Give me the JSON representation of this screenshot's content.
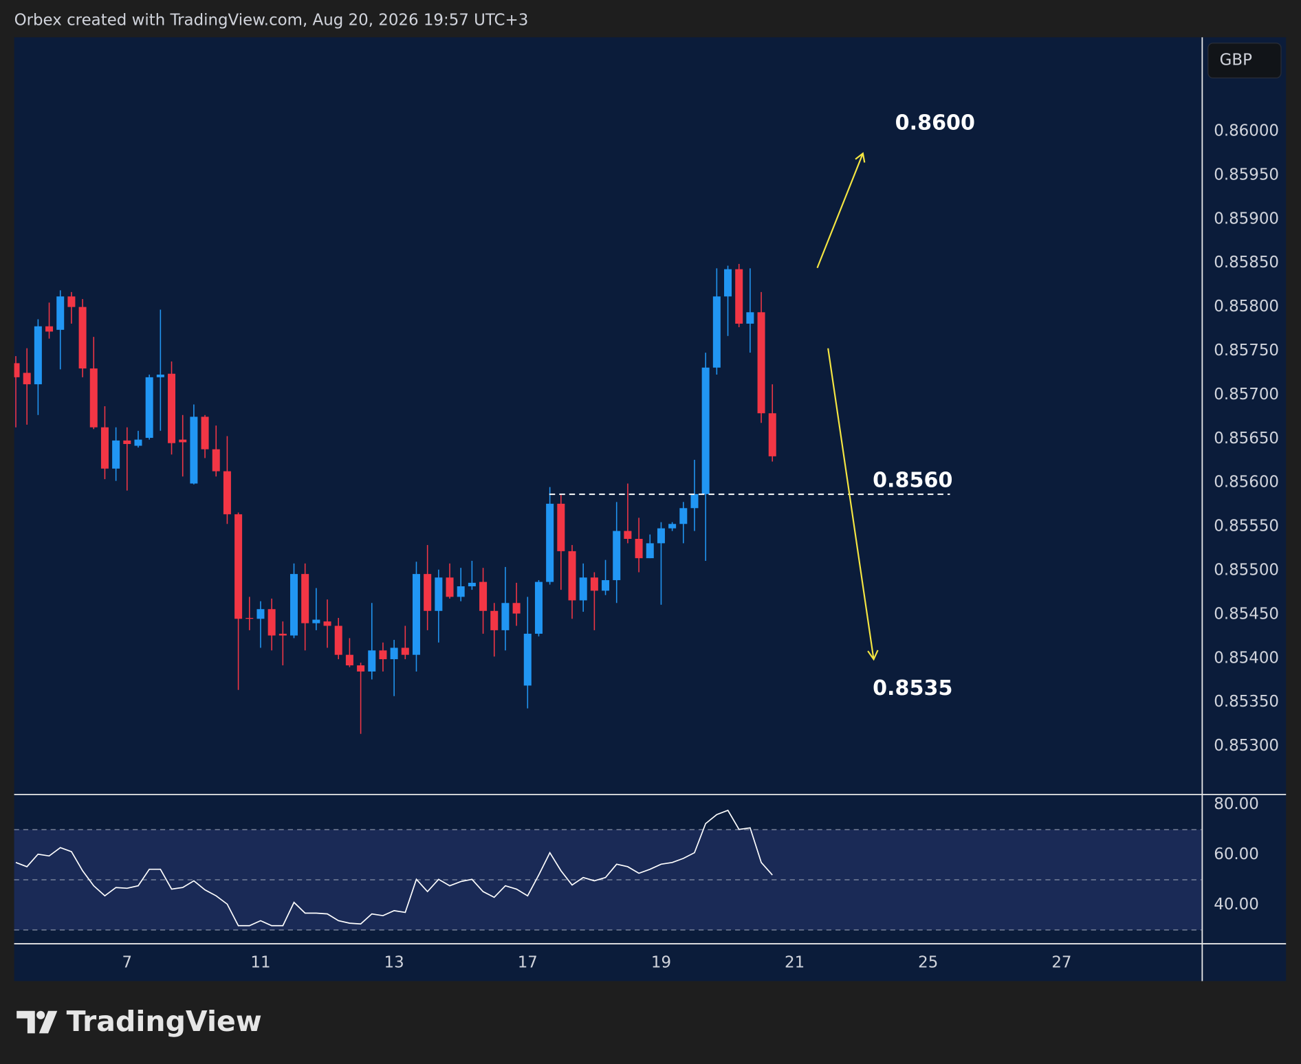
{
  "header": "Orbex created with TradingView.com, Aug 20, 2026 19:57 UTC+3",
  "brand": "TradingView",
  "chart_data": [
    {
      "type": "candlestick",
      "currency": "GBP",
      "up_color": "#2196f3",
      "down_color": "#f23645",
      "open": [
        0.85736,
        0.85725,
        0.85712,
        0.85778,
        0.85774,
        0.85812,
        0.858,
        0.8573,
        0.85663,
        0.85616,
        0.85648,
        0.85642,
        0.85651,
        0.8572,
        0.85724,
        0.85649,
        0.85599,
        0.85675,
        0.85638,
        0.85613,
        0.85564,
        0.85446,
        0.85445,
        0.85456,
        0.85428,
        0.85426,
        0.85496,
        0.8544,
        0.85442,
        0.85437,
        0.85404,
        0.85392,
        0.85385,
        0.85409,
        0.85399,
        0.85412,
        0.85404,
        0.85496,
        0.85454,
        0.85492,
        0.8547,
        0.85482,
        0.85487,
        0.85454,
        0.85432,
        0.85463,
        0.85369,
        0.85428,
        0.85487,
        0.85576,
        0.85522,
        0.85466,
        0.85492,
        0.85477,
        0.85489,
        0.85545,
        0.85536,
        0.85514,
        0.85531,
        0.85548,
        0.85553,
        0.85571,
        0.85587,
        0.85731,
        0.85812,
        0.85843,
        0.85781,
        0.85794,
        0.85679
      ],
      "high": [
        0.85744,
        0.85753,
        0.85786,
        0.85805,
        0.85819,
        0.85817,
        0.85809,
        0.85766,
        0.85687,
        0.85663,
        0.85663,
        0.85659,
        0.85723,
        0.85797,
        0.85738,
        0.85677,
        0.85689,
        0.85677,
        0.85665,
        0.85653,
        0.85566,
        0.8547,
        0.85465,
        0.85468,
        0.85442,
        0.85508,
        0.85508,
        0.8548,
        0.85467,
        0.85446,
        0.85423,
        0.85395,
        0.85463,
        0.85418,
        0.85421,
        0.85437,
        0.8551,
        0.85529,
        0.85501,
        0.85508,
        0.85503,
        0.85511,
        0.85503,
        0.85463,
        0.85504,
        0.85486,
        0.8547,
        0.85489,
        0.85595,
        0.85586,
        0.85529,
        0.85508,
        0.85498,
        0.85512,
        0.85578,
        0.85599,
        0.8556,
        0.85541,
        0.85555,
        0.85555,
        0.85578,
        0.85626,
        0.85748,
        0.85844,
        0.85847,
        0.85849,
        0.85844,
        0.85817,
        0.85712
      ],
      "low": [
        0.85663,
        0.85666,
        0.85677,
        0.85764,
        0.85729,
        0.85781,
        0.8572,
        0.85661,
        0.85604,
        0.85602,
        0.85591,
        0.8564,
        0.85649,
        0.85659,
        0.85632,
        0.85607,
        0.85598,
        0.85628,
        0.85607,
        0.85553,
        0.85364,
        0.85432,
        0.85412,
        0.85409,
        0.85392,
        0.85423,
        0.85409,
        0.85432,
        0.85412,
        0.85399,
        0.8539,
        0.85314,
        0.85376,
        0.85385,
        0.85357,
        0.85399,
        0.85385,
        0.85432,
        0.85418,
        0.85468,
        0.85465,
        0.85478,
        0.85428,
        0.85402,
        0.85409,
        0.85437,
        0.85343,
        0.85425,
        0.85484,
        0.85478,
        0.85445,
        0.85453,
        0.85432,
        0.85472,
        0.85463,
        0.85531,
        0.85498,
        0.85514,
        0.85461,
        0.85545,
        0.85531,
        0.85545,
        0.85511,
        0.85723,
        0.85767,
        0.85777,
        0.85748,
        0.85668,
        0.85624
      ],
      "close": [
        0.8572,
        0.85712,
        0.85778,
        0.85772,
        0.85812,
        0.858,
        0.8573,
        0.85663,
        0.85616,
        0.85648,
        0.85644,
        0.85649,
        0.8572,
        0.85723,
        0.85645,
        0.85646,
        0.85675,
        0.85638,
        0.85613,
        0.85564,
        0.85445,
        0.85445,
        0.85456,
        0.85426,
        0.85426,
        0.85496,
        0.8544,
        0.85444,
        0.85437,
        0.85404,
        0.85392,
        0.85385,
        0.85409,
        0.85399,
        0.85412,
        0.85404,
        0.85496,
        0.85454,
        0.85492,
        0.8547,
        0.85482,
        0.85486,
        0.85454,
        0.85432,
        0.85463,
        0.85451,
        0.85428,
        0.85487,
        0.85576,
        0.85522,
        0.85466,
        0.85492,
        0.85477,
        0.85489,
        0.85545,
        0.85536,
        0.85514,
        0.85531,
        0.85548,
        0.85553,
        0.85571,
        0.85587,
        0.85731,
        0.85812,
        0.85843,
        0.85781,
        0.85794,
        0.85679,
        0.8563
      ],
      "xlim": [
        -0.15,
        106.56
      ],
      "xticks": [
        {
          "value": 10,
          "label": "7"
        },
        {
          "value": 22,
          "label": "11"
        },
        {
          "value": 34,
          "label": "13"
        },
        {
          "value": 46,
          "label": "17"
        },
        {
          "value": 58,
          "label": "19"
        },
        {
          "value": 70,
          "label": "21"
        },
        {
          "value": 82,
          "label": "25"
        },
        {
          "value": 94,
          "label": "27"
        }
      ],
      "ylim": [
        0.85245,
        0.86107
      ],
      "yticks": [
        {
          "value": 0.86,
          "label": "0.86000"
        },
        {
          "value": 0.8595,
          "label": "0.85950"
        },
        {
          "value": 0.859,
          "label": "0.85900"
        },
        {
          "value": 0.8585,
          "label": "0.85850"
        },
        {
          "value": 0.858,
          "label": "0.85800"
        },
        {
          "value": 0.8575,
          "label": "0.85750"
        },
        {
          "value": 0.857,
          "label": "0.85700"
        },
        {
          "value": 0.8565,
          "label": "0.85650"
        },
        {
          "value": 0.856,
          "label": "0.85600"
        },
        {
          "value": 0.8555,
          "label": "0.85550"
        },
        {
          "value": 0.855,
          "label": "0.85500"
        },
        {
          "value": 0.8545,
          "label": "0.85450"
        },
        {
          "value": 0.854,
          "label": "0.85400"
        },
        {
          "value": 0.8535,
          "label": "0.85350"
        },
        {
          "value": 0.853,
          "label": "0.85300"
        }
      ],
      "annotations": [
        {
          "text": "0.8600"
        },
        {
          "text": "0.8560"
        },
        {
          "text": "0.8535"
        }
      ]
    },
    {
      "type": "line",
      "color": "#ffffff",
      "values": [
        56.9,
        55.2,
        60.2,
        59.5,
        62.8,
        61.2,
        53.6,
        47.6,
        43.6,
        46.9,
        46.6,
        47.6,
        54.2,
        54.2,
        46.3,
        46.9,
        49.6,
        46.0,
        43.6,
        40.3,
        31.7,
        31.7,
        33.7,
        31.7,
        31.7,
        41.0,
        36.7,
        36.7,
        36.4,
        33.7,
        32.7,
        32.4,
        36.4,
        35.7,
        37.7,
        37.0,
        50.2,
        45.3,
        50.2,
        47.6,
        49.3,
        50.2,
        45.3,
        43.0,
        47.6,
        46.3,
        43.6,
        51.9,
        60.8,
        53.6,
        47.9,
        50.9,
        49.6,
        50.9,
        56.2,
        55.2,
        52.6,
        54.2,
        56.2,
        56.9,
        58.5,
        60.8,
        72.4,
        76.0,
        77.7,
        70.1,
        70.7,
        56.9,
        51.9
      ],
      "ylim": [
        24.5,
        84
      ],
      "yticks": [
        {
          "value": 80,
          "label": "80.00"
        },
        {
          "value": 60,
          "label": "60.00"
        },
        {
          "value": 40,
          "label": "40.00"
        }
      ],
      "levels": [
        70,
        50,
        30
      ],
      "band_color": "#1a2a56"
    }
  ]
}
